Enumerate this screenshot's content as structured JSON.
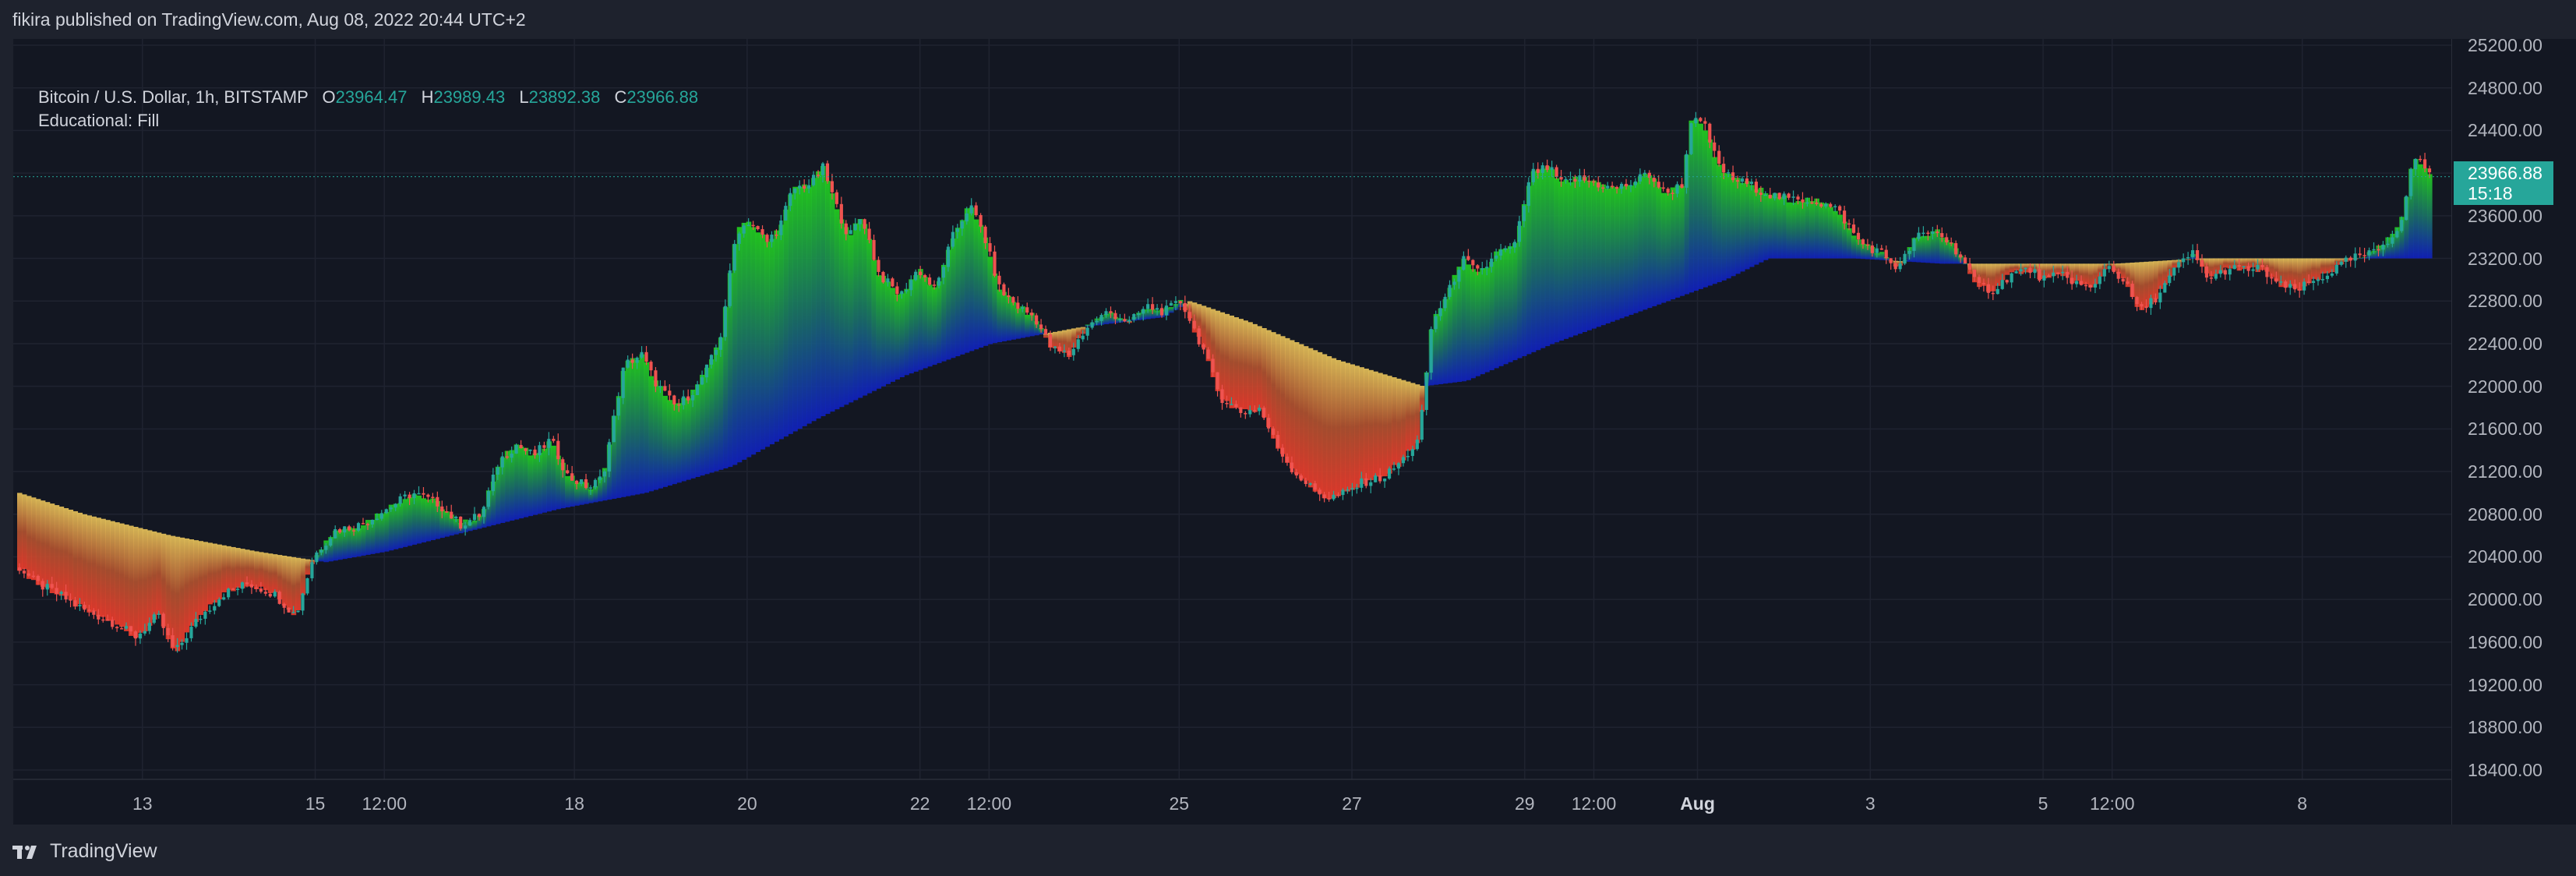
{
  "header": {
    "published": "fikira published on TradingView.com, Aug 08, 2022 20:44 UTC+2"
  },
  "legend": {
    "symbol": "Bitcoin / U.S. Dollar, 1h, BITSTAMP",
    "o_label": "O",
    "o_value": "23964.47",
    "h_label": "H",
    "h_value": "23989.43",
    "l_label": "L",
    "l_value": "23892.38",
    "c_label": "C",
    "c_value": "23966.88",
    "indicator": "Educational: Fill"
  },
  "last_price": {
    "value": "23966.88",
    "countdown": "15:18",
    "color": "#26a69a"
  },
  "footer": {
    "brand": "TradingView",
    "logo_icon": "tradingview-logo-icon"
  },
  "colors": {
    "background": "#131722",
    "up": "#26a69a",
    "down": "#ef5350",
    "fill_top_up": "#22d21e",
    "fill_top_down": "#ef3b2c",
    "fill_bottom_up": "#1020c0",
    "fill_bottom_down": "#e8c45a"
  },
  "chart_data": {
    "type": "candlestick",
    "title": "",
    "ylim": [
      18400,
      25200
    ],
    "y_ticks": [
      "25200.00",
      "24800.00",
      "24400.00",
      "24000.00",
      "23600.00",
      "23200.00",
      "22800.00",
      "22400.00",
      "22000.00",
      "21600.00",
      "21200.00",
      "20800.00",
      "20400.00",
      "20000.00",
      "19600.00",
      "19200.00",
      "18800.00",
      "18400.00"
    ],
    "x_ticks": [
      {
        "label": "13",
        "x": 4.7
      },
      {
        "label": "15",
        "x": 6.7
      },
      {
        "label": "12:00",
        "x": 7.5
      },
      {
        "label": "18",
        "x": 9.7
      },
      {
        "label": "20",
        "x": 11.7
      },
      {
        "label": "22",
        "x": 13.7
      },
      {
        "label": "12:00",
        "x": 14.5
      },
      {
        "label": "25",
        "x": 16.7
      },
      {
        "label": "27",
        "x": 18.7
      },
      {
        "label": "29",
        "x": 20.7
      },
      {
        "label": "12:00",
        "x": 21.5
      },
      {
        "label": "Aug",
        "x": 22.7,
        "bold": true
      },
      {
        "label": "3",
        "x": 24.7
      },
      {
        "label": "5",
        "x": 26.7
      },
      {
        "label": "12:00",
        "x": 27.5
      },
      {
        "label": "8",
        "x": 29.7
      }
    ],
    "x_range": [
      3.25,
      31.2
    ],
    "price_path": [
      [
        3.25,
        20300
      ],
      [
        3.45,
        20150
      ],
      [
        3.7,
        20050
      ],
      [
        4.0,
        19900
      ],
      [
        4.3,
        19800
      ],
      [
        4.6,
        19650
      ],
      [
        4.85,
        19850
      ],
      [
        5.05,
        19500
      ],
      [
        5.3,
        19800
      ],
      [
        5.6,
        20050
      ],
      [
        5.9,
        20150
      ],
      [
        6.2,
        20050
      ],
      [
        6.45,
        19850
      ],
      [
        6.65,
        20400
      ],
      [
        6.9,
        20650
      ],
      [
        7.2,
        20700
      ],
      [
        7.5,
        20850
      ],
      [
        7.8,
        21000
      ],
      [
        8.1,
        20900
      ],
      [
        8.35,
        20700
      ],
      [
        8.6,
        20800
      ],
      [
        8.8,
        21300
      ],
      [
        9.0,
        21450
      ],
      [
        9.2,
        21350
      ],
      [
        9.4,
        21500
      ],
      [
        9.6,
        21150
      ],
      [
        9.85,
        21050
      ],
      [
        10.0,
        21150
      ],
      [
        10.25,
        22200
      ],
      [
        10.45,
        22300
      ],
      [
        10.6,
        22050
      ],
      [
        10.85,
        21800
      ],
      [
        11.1,
        22000
      ],
      [
        11.35,
        22400
      ],
      [
        11.55,
        23450
      ],
      [
        11.7,
        23550
      ],
      [
        11.9,
        23350
      ],
      [
        12.05,
        23500
      ],
      [
        12.2,
        23850
      ],
      [
        12.4,
        23900
      ],
      [
        12.55,
        24050
      ],
      [
        12.7,
        23700
      ],
      [
        12.85,
        23400
      ],
      [
        13.0,
        23600
      ],
      [
        13.2,
        23050
      ],
      [
        13.45,
        22850
      ],
      [
        13.65,
        23100
      ],
      [
        13.85,
        22900
      ],
      [
        14.05,
        23400
      ],
      [
        14.25,
        23700
      ],
      [
        14.4,
        23450
      ],
      [
        14.6,
        22900
      ],
      [
        14.8,
        22750
      ],
      [
        15.0,
        22650
      ],
      [
        15.2,
        22350
      ],
      [
        15.4,
        22300
      ],
      [
        15.6,
        22550
      ],
      [
        15.85,
        22700
      ],
      [
        16.1,
        22600
      ],
      [
        16.3,
        22750
      ],
      [
        16.5,
        22700
      ],
      [
        16.7,
        22800
      ],
      [
        16.95,
        22350
      ],
      [
        17.15,
        21900
      ],
      [
        17.4,
        21750
      ],
      [
        17.6,
        21800
      ],
      [
        17.8,
        21450
      ],
      [
        18.0,
        21200
      ],
      [
        18.2,
        21050
      ],
      [
        18.4,
        20950
      ],
      [
        18.6,
        21000
      ],
      [
        18.8,
        21100
      ],
      [
        19.05,
        21150
      ],
      [
        19.25,
        21300
      ],
      [
        19.45,
        21500
      ],
      [
        19.6,
        22600
      ],
      [
        19.8,
        22900
      ],
      [
        19.95,
        23200
      ],
      [
        20.15,
        23050
      ],
      [
        20.35,
        23250
      ],
      [
        20.55,
        23300
      ],
      [
        20.75,
        24000
      ],
      [
        20.95,
        24050
      ],
      [
        21.1,
        23900
      ],
      [
        21.3,
        23950
      ],
      [
        21.5,
        23900
      ],
      [
        21.7,
        23850
      ],
      [
        21.9,
        23900
      ],
      [
        22.1,
        24000
      ],
      [
        22.3,
        23800
      ],
      [
        22.5,
        23900
      ],
      [
        22.6,
        24500
      ],
      [
        22.75,
        24450
      ],
      [
        22.9,
        24100
      ],
      [
        23.05,
        23950
      ],
      [
        23.25,
        23900
      ],
      [
        23.5,
        23800
      ],
      [
        23.75,
        23750
      ],
      [
        24.0,
        23750
      ],
      [
        24.3,
        23650
      ],
      [
        24.55,
        23350
      ],
      [
        24.8,
        23250
      ],
      [
        25.0,
        23100
      ],
      [
        25.2,
        23400
      ],
      [
        25.45,
        23450
      ],
      [
        25.7,
        23250
      ],
      [
        25.9,
        22950
      ],
      [
        26.1,
        22900
      ],
      [
        26.3,
        23050
      ],
      [
        26.5,
        23100
      ],
      [
        26.7,
        23000
      ],
      [
        26.9,
        23050
      ],
      [
        27.1,
        22950
      ],
      [
        27.25,
        22900
      ],
      [
        27.4,
        23150
      ],
      [
        27.6,
        23000
      ],
      [
        27.8,
        22700
      ],
      [
        28.0,
        22850
      ],
      [
        28.2,
        23100
      ],
      [
        28.4,
        23250
      ],
      [
        28.6,
        23000
      ],
      [
        28.8,
        23100
      ],
      [
        29.0,
        23100
      ],
      [
        29.2,
        23100
      ],
      [
        29.4,
        22950
      ],
      [
        29.6,
        22900
      ],
      [
        29.85,
        23000
      ],
      [
        30.05,
        23100
      ],
      [
        30.25,
        23200
      ],
      [
        30.5,
        23250
      ],
      [
        30.7,
        23400
      ],
      [
        30.85,
        23600
      ],
      [
        30.95,
        24150
      ],
      [
        31.05,
        24100
      ],
      [
        31.2,
        23966.88
      ]
    ],
    "reference_path": [
      [
        3.25,
        21000
      ],
      [
        4.0,
        20800
      ],
      [
        5.0,
        20600
      ],
      [
        6.0,
        20450
      ],
      [
        6.8,
        20350
      ],
      [
        7.5,
        20450
      ],
      [
        8.5,
        20650
      ],
      [
        9.5,
        20850
      ],
      [
        10.5,
        21000
      ],
      [
        11.5,
        21250
      ],
      [
        12.5,
        21700
      ],
      [
        13.5,
        22100
      ],
      [
        14.5,
        22400
      ],
      [
        15.5,
        22550
      ],
      [
        16.5,
        22650
      ],
      [
        16.8,
        22800
      ],
      [
        17.5,
        22600
      ],
      [
        18.5,
        22250
      ],
      [
        19.5,
        22000
      ],
      [
        20.0,
        22050
      ],
      [
        21.0,
        22400
      ],
      [
        22.0,
        22700
      ],
      [
        23.0,
        23000
      ],
      [
        23.5,
        23200
      ],
      [
        24.5,
        23200
      ],
      [
        25.5,
        23150
      ],
      [
        26.5,
        23150
      ],
      [
        27.5,
        23150
      ],
      [
        28.5,
        23200
      ],
      [
        29.5,
        23200
      ],
      [
        30.5,
        23200
      ],
      [
        31.2,
        23200
      ]
    ],
    "last_price": 23966.88
  }
}
